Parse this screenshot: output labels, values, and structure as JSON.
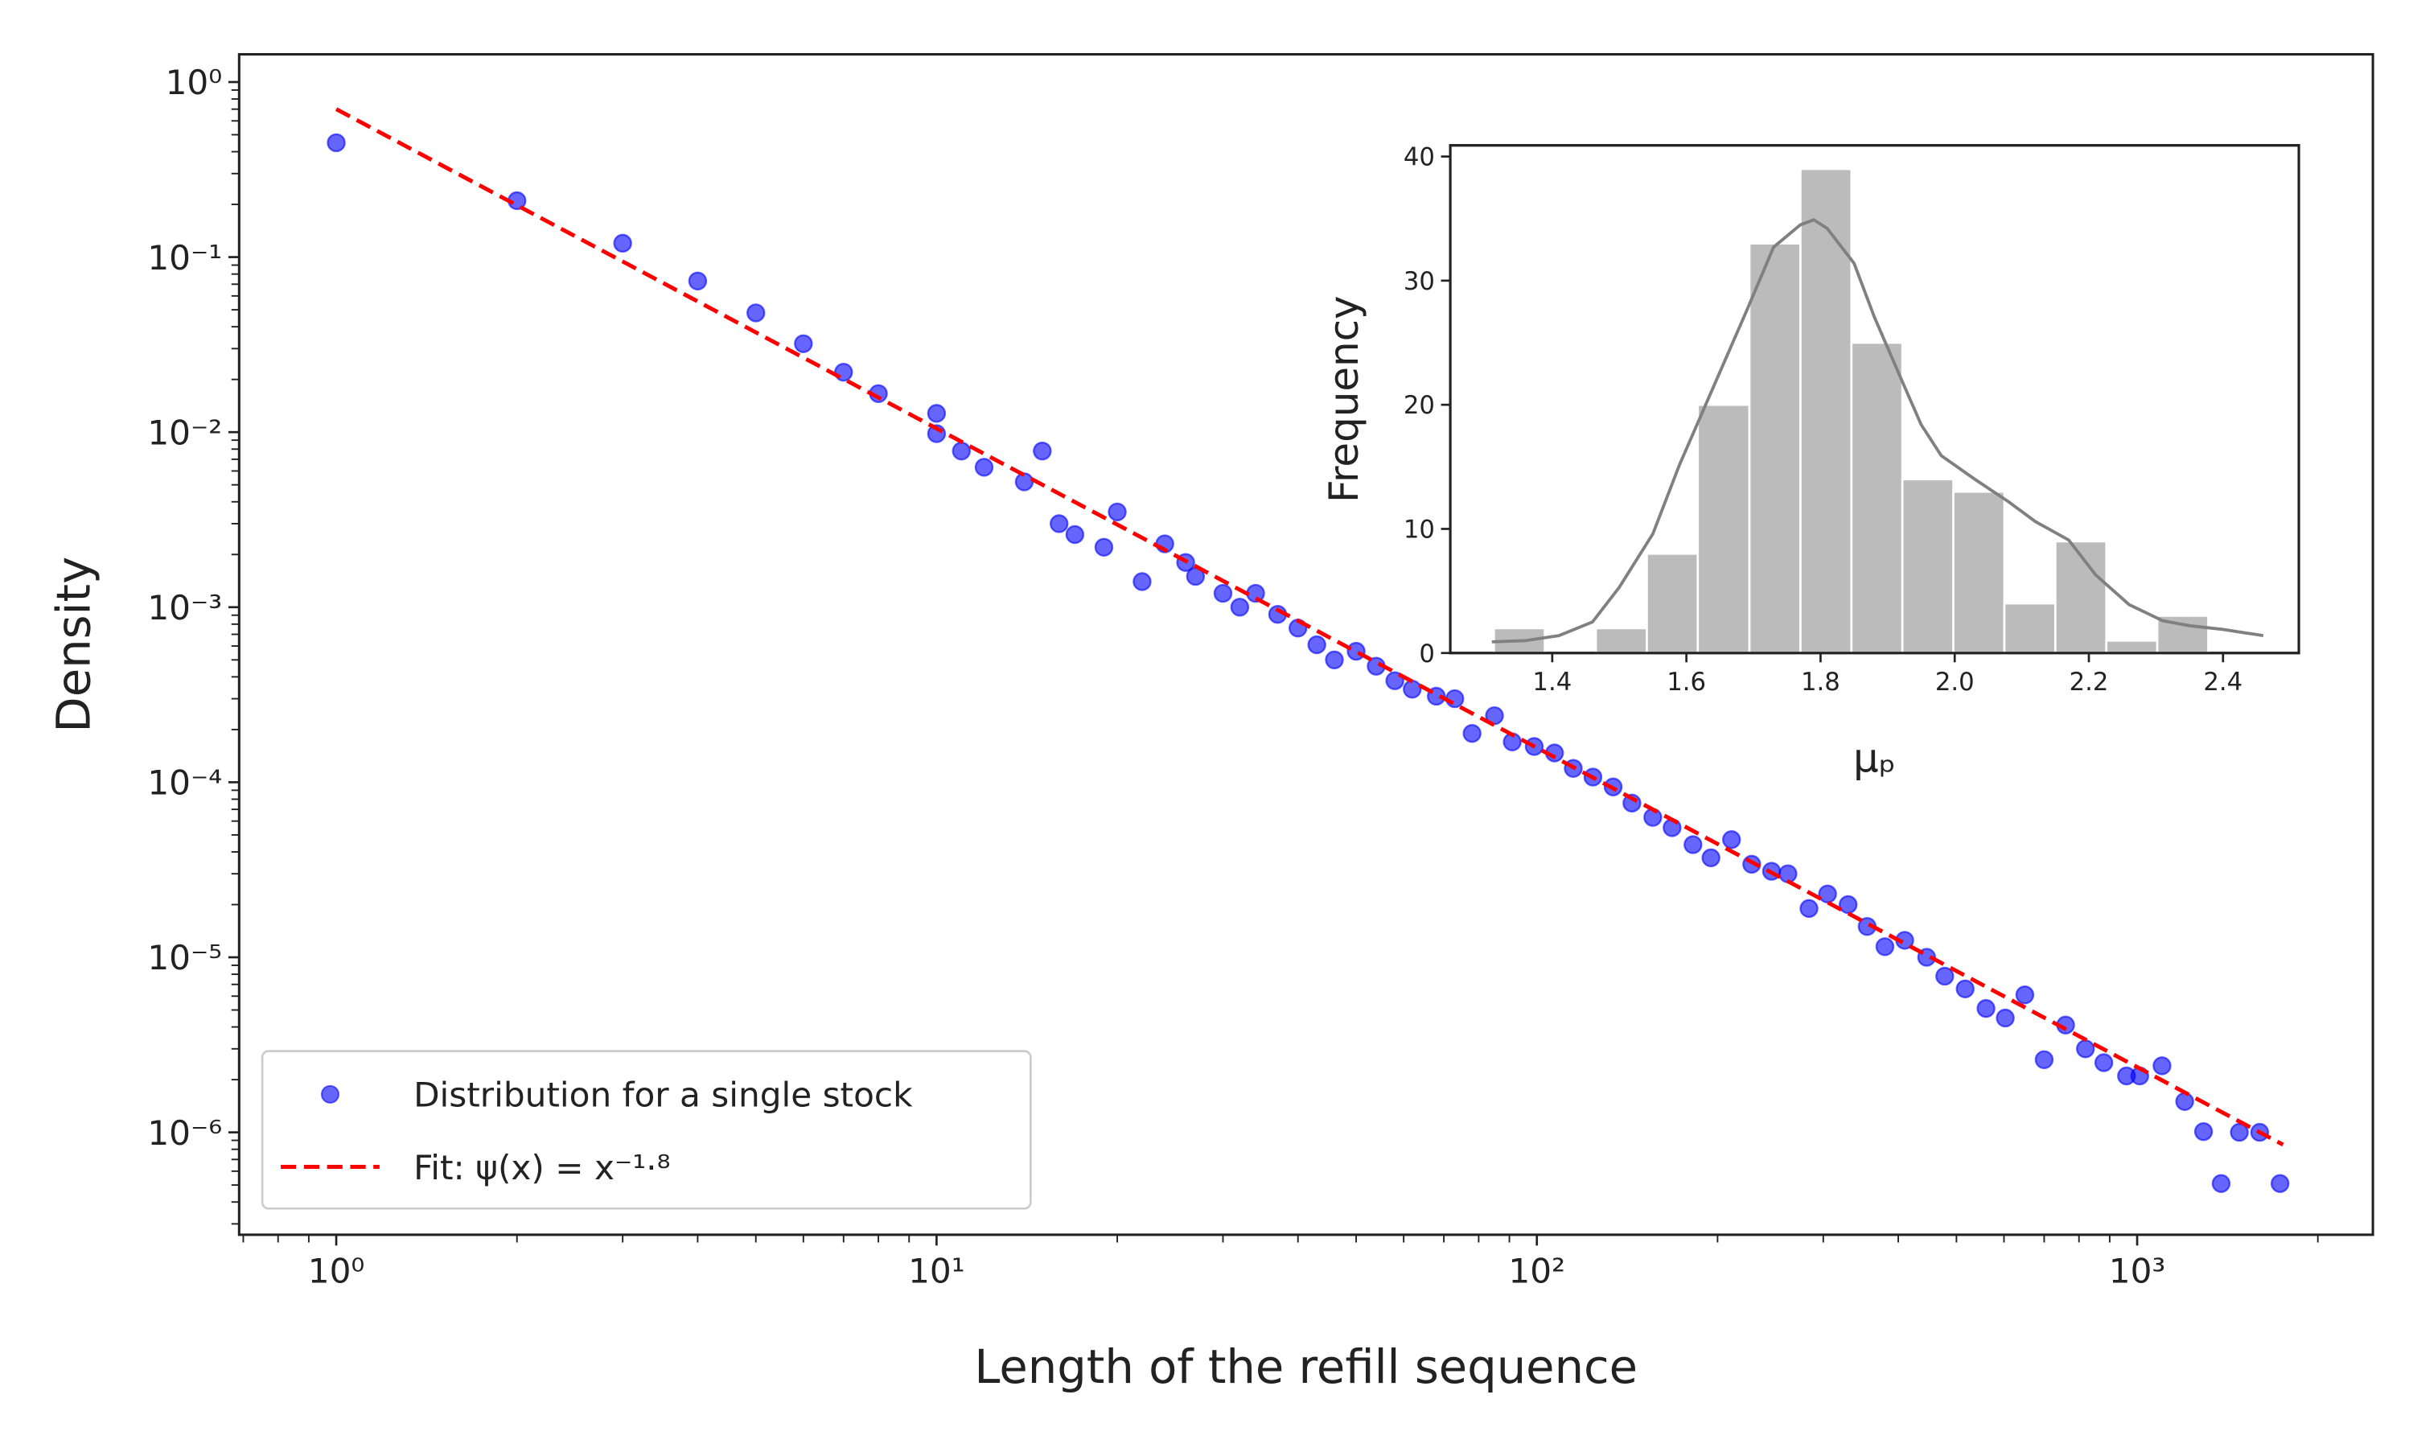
{
  "chart_data": [
    {
      "type": "scatter",
      "xlabel": "Length of the refill sequence",
      "ylabel": "Density",
      "xscale": "log",
      "yscale": "log",
      "minor_ticks": true,
      "xlim": [
        0.689,
        2470
      ],
      "ylim": [
        2.6e-07,
        1.44
      ],
      "xticks": [
        {
          "value": 1,
          "label": "10⁰"
        },
        {
          "value": 10,
          "label": "10¹"
        },
        {
          "value": 100,
          "label": "10²"
        },
        {
          "value": 1000,
          "label": "10³"
        }
      ],
      "yticks": [
        {
          "value": 1e-06,
          "label": "10⁻⁶"
        },
        {
          "value": 1e-05,
          "label": "10⁻⁵"
        },
        {
          "value": 0.0001,
          "label": "10⁻⁴"
        },
        {
          "value": 0.001,
          "label": "10⁻³"
        },
        {
          "value": 0.01,
          "label": "10⁻²"
        },
        {
          "value": 0.1,
          "label": "10⁻¹"
        },
        {
          "value": 1,
          "label": "10⁰"
        }
      ],
      "legend": "lower left",
      "series": [
        {
          "name": "Distribution for a single stock",
          "type": "scatter",
          "color": "#0000ff",
          "x": [
            1,
            2,
            3,
            4,
            5,
            6,
            7,
            8,
            10,
            10,
            11,
            12,
            14,
            15,
            16,
            17,
            19,
            20,
            22,
            24,
            26,
            27,
            30,
            32,
            34,
            37,
            40,
            43,
            46,
            50,
            54,
            58,
            62,
            68,
            73,
            78,
            85,
            91,
            99,
            107,
            115,
            124,
            134,
            144,
            156,
            168,
            182,
            195,
            211,
            228,
            246,
            262,
            284,
            305,
            330,
            355,
            380,
            410,
            446,
            478,
            517,
            560,
            603,
            650,
            700,
            760,
            820,
            880,
            960,
            1010,
            1100,
            1200,
            1290,
            1380,
            1480,
            1600,
            1730
          ],
          "values": [
            0.45,
            0.21,
            0.12,
            0.073,
            0.048,
            0.032,
            0.022,
            0.0166,
            0.0128,
            0.0098,
            0.0078,
            0.0063,
            0.0052,
            0.0078,
            0.003,
            0.0026,
            0.0022,
            0.0035,
            0.0014,
            0.0023,
            0.0018,
            0.0015,
            0.0012,
            0.001,
            0.0012,
            0.00091,
            0.00076,
            0.00061,
            0.0005,
            0.00056,
            0.00046,
            0.00038,
            0.00034,
            0.00031,
            0.0003,
            0.00019,
            0.00024,
            0.00017,
            0.00016,
            0.000147,
            0.00012,
            0.000107,
            9.4e-05,
            7.6e-05,
            6.3e-05,
            5.5e-05,
            4.4e-05,
            3.7e-05,
            4.7e-05,
            3.4e-05,
            3.1e-05,
            3e-05,
            1.9e-05,
            2.3e-05,
            2e-05,
            1.5e-05,
            1.15e-05,
            1.25e-05,
            1e-05,
            7.8e-06,
            6.6e-06,
            5.1e-06,
            4.5e-06,
            6.1e-06,
            2.6e-06,
            4.1e-06,
            3e-06,
            2.5e-06,
            2.1e-06,
            2.1e-06,
            2.4e-06,
            1.5e-06,
            1.01e-06,
            5.1e-07,
            1e-06,
            1e-06,
            5.1e-07
          ]
        },
        {
          "name": "Fit: ψ(x) = x⁻¹·⁸",
          "type": "line",
          "style": "dashed",
          "color": "#ff0000",
          "x": [
            1,
            1750
          ],
          "values": [
            0.7,
            8.5e-07
          ]
        }
      ]
    },
    {
      "type": "histogram",
      "xlabel": "μₚ",
      "ylabel": "Frequency",
      "xlim": [
        1.248,
        2.513
      ],
      "ylim": [
        0,
        40.9
      ],
      "xticks": [
        1.4,
        1.6,
        1.8,
        {
          "value": 2,
          "label": "2.0"
        },
        2.2,
        2.4
      ],
      "yticks": [
        0,
        10,
        20,
        30,
        40
      ],
      "color": "#bbbbbb",
      "bins": [
        1.313,
        1.389,
        1.465,
        1.541,
        1.617,
        1.694,
        1.77,
        1.846,
        1.922,
        1.998,
        2.074,
        2.15,
        2.226,
        2.302,
        2.378
      ],
      "values": [
        2,
        0,
        2,
        8,
        20,
        33,
        39,
        25,
        14,
        13,
        4,
        9,
        1,
        3
      ],
      "kde": {
        "color": "#808080",
        "x": [
          1.31,
          1.36,
          1.41,
          1.46,
          1.5,
          1.55,
          1.59,
          1.64,
          1.69,
          1.73,
          1.77,
          1.79,
          1.81,
          1.85,
          1.88,
          1.92,
          1.95,
          1.98,
          2.03,
          2.08,
          2.12,
          2.17,
          2.21,
          2.26,
          2.31,
          2.35,
          2.4,
          2.46
        ],
        "values": [
          0.9,
          1.0,
          1.4,
          2.5,
          5.3,
          9.6,
          15.2,
          21.4,
          27.6,
          32.7,
          34.5,
          34.9,
          34.2,
          31.4,
          27.1,
          22.1,
          18.4,
          15.9,
          14.0,
          12.2,
          10.6,
          9.1,
          6.3,
          3.9,
          2.6,
          2.2,
          1.9,
          1.4
        ]
      }
    }
  ]
}
